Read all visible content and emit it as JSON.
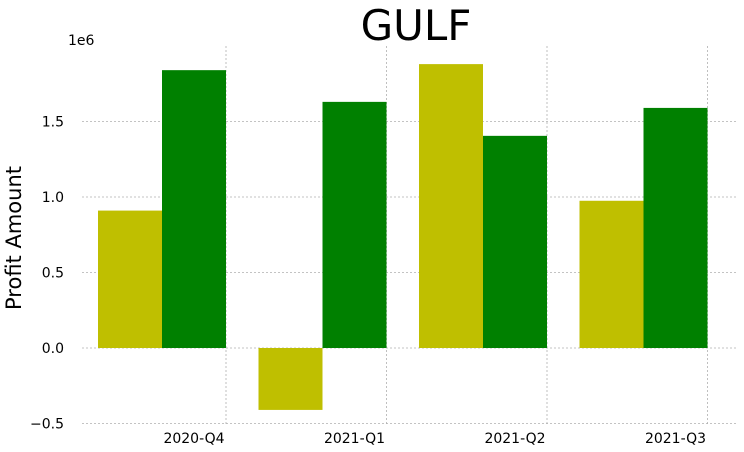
{
  "chart_data": {
    "type": "bar",
    "title": "GULF",
    "xlabel": "",
    "ylabel": "Profit Amount",
    "y_offset_label": "1e6",
    "categories": [
      "2020-Q4",
      "2021-Q1",
      "2021-Q2",
      "2021-Q3"
    ],
    "series": [
      {
        "color": "#bfbf00",
        "values": [
          910000,
          -410000,
          1880000,
          975000
        ]
      },
      {
        "color": "#008000",
        "values": [
          1840000,
          1630000,
          1405000,
          1590000
        ]
      }
    ],
    "ylim": [
      -0.5,
      2.0
    ],
    "yticks": [
      -0.5,
      0.0,
      0.5,
      1.0,
      1.5
    ],
    "ytick_labels": [
      "−0.5",
      "0.0",
      "0.5",
      "1.0",
      "1.5"
    ],
    "grid": true
  }
}
